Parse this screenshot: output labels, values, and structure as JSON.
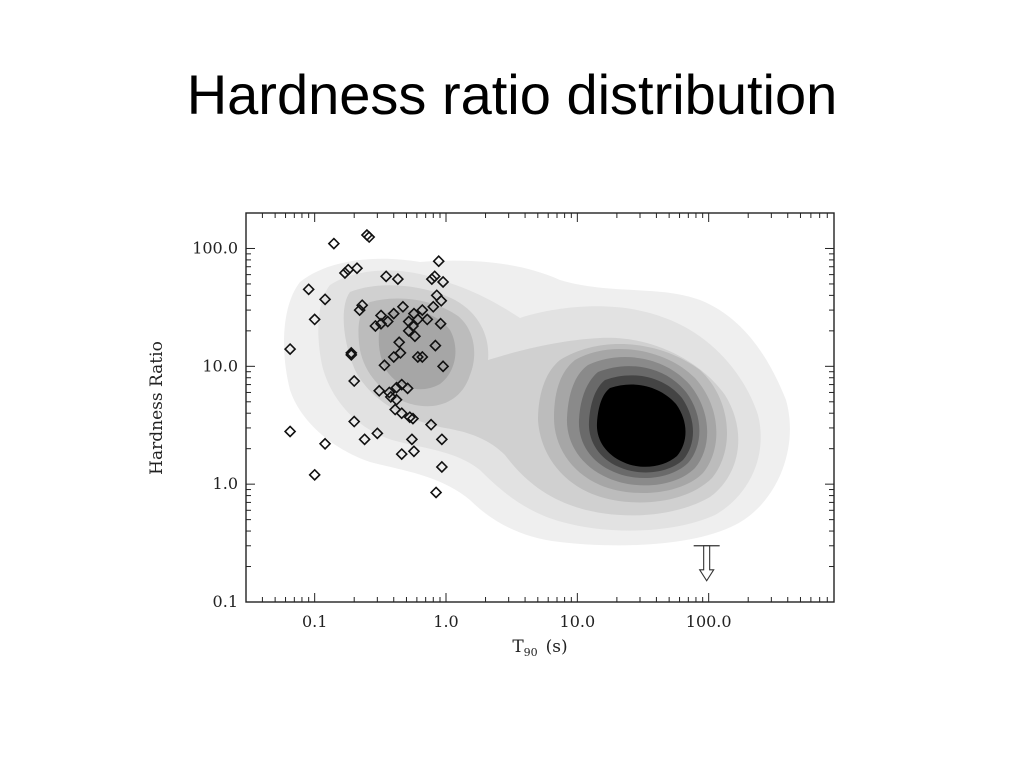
{
  "slide": {
    "title": "Hardness ratio distribution"
  },
  "chart_data": {
    "type": "scatter",
    "title": "",
    "xlabel_main": "T",
    "xlabel_sub": "90",
    "xlabel_unit": "(s)",
    "ylabel": "Hardness Ratio",
    "xscale": "log",
    "yscale": "log",
    "xlim": [
      0.03,
      900
    ],
    "ylim": [
      0.1,
      200
    ],
    "xticks": [
      0.1,
      1.0,
      10.0,
      100.0
    ],
    "xtick_labels": [
      "0.1",
      "1.0",
      "10.0",
      "100.0"
    ],
    "yticks": [
      0.1,
      1.0,
      10.0,
      100.0
    ],
    "ytick_labels": [
      "0.1",
      "1.0",
      "10.0",
      "100.0"
    ],
    "grid": false,
    "background_density": "grayscale filled contours: broad long-duration peak near T90 ≈ 30 s, HR ≈ 2.5; weaker short-duration lobe near T90 ≈ 0.4 s, HR ≈ 20",
    "upper_limit_arrow": {
      "x": 100.0,
      "y": 0.3,
      "direction": "down"
    },
    "points": {
      "marker": "diamond",
      "x": [
        0.25,
        0.26,
        0.14,
        0.21,
        0.17,
        0.18,
        0.35,
        0.43,
        0.82,
        0.78,
        0.88,
        0.95,
        0.09,
        0.12,
        0.23,
        0.47,
        0.57,
        0.66,
        0.85,
        0.92,
        0.22,
        0.32,
        0.36,
        0.52,
        0.61,
        0.8,
        0.1,
        0.29,
        0.32,
        0.4,
        0.56,
        0.72,
        0.91,
        0.19,
        0.44,
        0.52,
        0.58,
        0.66,
        0.065,
        0.19,
        0.34,
        0.4,
        0.45,
        0.61,
        0.83,
        0.2,
        0.31,
        0.42,
        0.95,
        0.37,
        0.38,
        0.42,
        0.46,
        0.51,
        0.41,
        0.46,
        0.53,
        0.2,
        0.56,
        0.77,
        0.3,
        0.24,
        0.55,
        0.93,
        0.065,
        0.12,
        0.46,
        0.57,
        0.1,
        0.93,
        0.84
      ],
      "y": [
        130,
        125,
        110,
        68,
        62,
        66,
        58,
        55,
        58,
        55,
        78,
        52,
        45,
        37,
        33,
        32,
        28,
        30,
        40,
        36,
        30,
        27,
        24,
        24,
        25,
        32,
        25,
        22,
        23,
        28,
        22,
        25,
        23,
        13,
        16,
        20,
        18,
        12,
        14,
        12.5,
        10.2,
        12,
        13,
        12,
        15,
        7.5,
        6.2,
        6.6,
        10,
        6,
        5.5,
        5.2,
        7,
        6.5,
        4.3,
        4,
        3.7,
        3.4,
        3.6,
        3.2,
        2.7,
        2.4,
        2.4,
        2.4,
        2.8,
        2.2,
        1.8,
        1.9,
        1.2,
        1.4,
        0.85
      ]
    }
  }
}
